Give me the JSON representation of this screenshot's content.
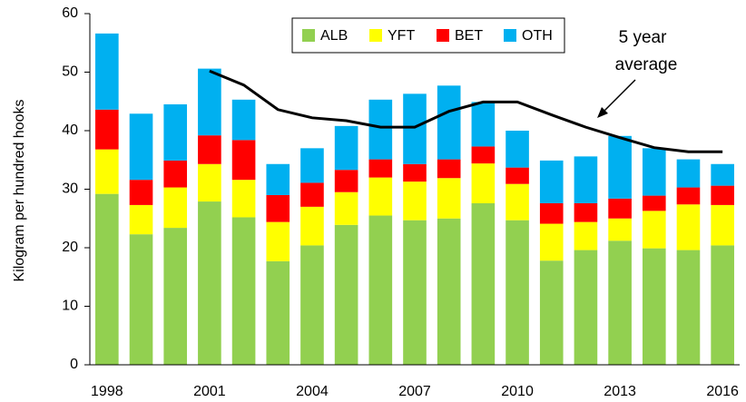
{
  "chart_data": {
    "type": "bar",
    "y_label": "Kilogram per hundred hooks",
    "categories": [
      "1998",
      null,
      null,
      "2001",
      null,
      null,
      "2004",
      null,
      null,
      "2007",
      null,
      null,
      "2010",
      null,
      null,
      "2013",
      null,
      null,
      "2016"
    ],
    "series": [
      {
        "name": "ALB",
        "color": "#92d050",
        "values": [
          29.2,
          22.3,
          23.4,
          27.9,
          25.2,
          17.7,
          20.4,
          23.9,
          25.5,
          24.7,
          25.0,
          27.6,
          24.7,
          17.8,
          19.6,
          21.2,
          19.9,
          19.6,
          20.4
        ]
      },
      {
        "name": "YFT",
        "color": "#ffff00",
        "values": [
          7.6,
          5.0,
          6.9,
          6.4,
          6.4,
          6.7,
          6.6,
          5.6,
          6.5,
          6.6,
          6.9,
          6.8,
          6.2,
          6.3,
          4.8,
          3.8,
          6.4,
          7.8,
          6.9
        ]
      },
      {
        "name": "BET",
        "color": "#ff0000",
        "values": [
          6.8,
          4.3,
          4.6,
          4.9,
          6.8,
          4.6,
          4.1,
          3.8,
          3.1,
          3.0,
          3.2,
          2.9,
          2.8,
          3.5,
          3.2,
          3.4,
          2.6,
          2.9,
          3.3
        ]
      },
      {
        "name": "OTH",
        "color": "#00b0f0",
        "values": [
          13.0,
          11.3,
          9.6,
          11.4,
          6.9,
          5.3,
          5.9,
          7.5,
          10.2,
          12.0,
          12.6,
          7.6,
          6.3,
          7.3,
          8.0,
          10.7,
          8.1,
          4.8,
          3.7
        ]
      }
    ],
    "line": {
      "color": "#000000",
      "values": [
        null,
        null,
        null,
        50.2,
        47.8,
        43.6,
        42.2,
        41.7,
        40.6,
        40.6,
        43.3,
        44.9,
        44.9,
        42.7,
        40.6,
        38.8,
        37.1,
        36.4,
        36.4
      ]
    },
    "annotation": [
      "5 year",
      "average"
    ],
    "ylim": [
      0,
      60
    ],
    "yticks": [
      0,
      10,
      20,
      30,
      40,
      50,
      60
    ],
    "legend": "top"
  }
}
